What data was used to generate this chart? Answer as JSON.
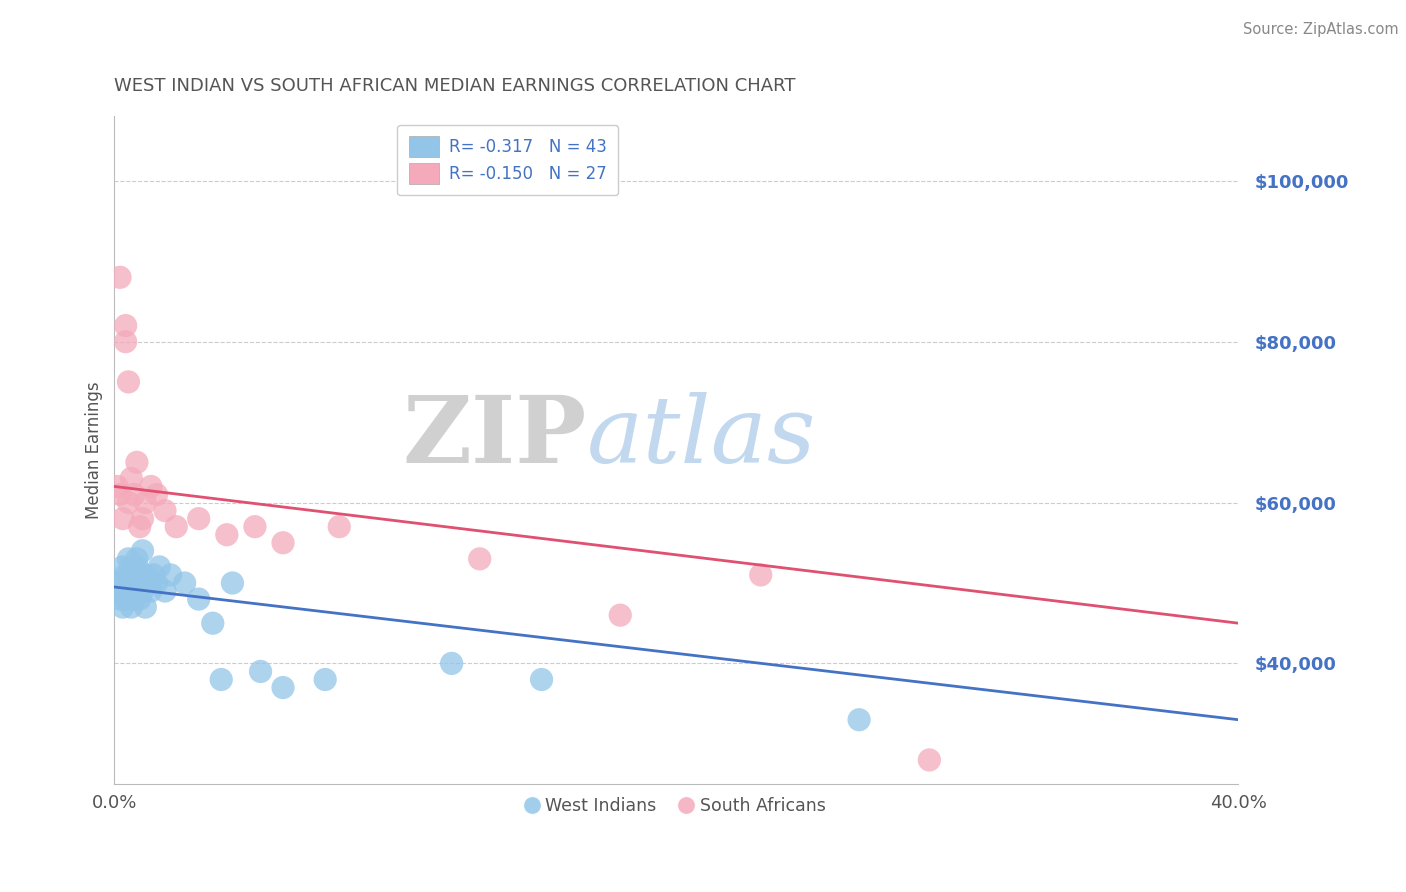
{
  "title": "WEST INDIAN VS SOUTH AFRICAN MEDIAN EARNINGS CORRELATION CHART",
  "source": "Source: ZipAtlas.com",
  "ylabel": "Median Earnings",
  "y_tick_labels": [
    "$40,000",
    "$60,000",
    "$80,000",
    "$100,000"
  ],
  "y_tick_values": [
    40000,
    60000,
    80000,
    100000
  ],
  "xlim": [
    0.0,
    0.4
  ],
  "ylim": [
    25000,
    108000
  ],
  "blue_color": "#92C5E8",
  "pink_color": "#F4AABB",
  "blue_line_color": "#4472C4",
  "pink_line_color": "#E05070",
  "title_color": "#555555",
  "axis_label_color": "#555555",
  "tick_color": "#4472C4",
  "source_color": "#888888",
  "grid_color": "#CCCCCC",
  "background_color": "#FFFFFF",
  "wi_x": [
    0.001,
    0.002,
    0.002,
    0.003,
    0.003,
    0.004,
    0.004,
    0.005,
    0.005,
    0.005,
    0.006,
    0.006,
    0.007,
    0.007,
    0.007,
    0.007,
    0.008,
    0.008,
    0.008,
    0.009,
    0.009,
    0.01,
    0.01,
    0.011,
    0.011,
    0.012,
    0.013,
    0.014,
    0.015,
    0.016,
    0.018,
    0.02,
    0.025,
    0.03,
    0.035,
    0.038,
    0.042,
    0.052,
    0.06,
    0.075,
    0.12,
    0.152,
    0.265
  ],
  "wi_y": [
    49000,
    48000,
    50000,
    47000,
    52000,
    51000,
    48000,
    50000,
    53000,
    49000,
    47000,
    52000,
    51000,
    48000,
    50000,
    49000,
    53000,
    50000,
    52000,
    48000,
    50000,
    54000,
    49000,
    51000,
    47000,
    50000,
    49000,
    51000,
    50000,
    52000,
    49000,
    51000,
    50000,
    48000,
    45000,
    38000,
    50000,
    39000,
    37000,
    38000,
    40000,
    38000,
    33000
  ],
  "sa_x": [
    0.001,
    0.002,
    0.002,
    0.003,
    0.004,
    0.004,
    0.005,
    0.005,
    0.006,
    0.007,
    0.008,
    0.009,
    0.01,
    0.011,
    0.013,
    0.015,
    0.018,
    0.022,
    0.03,
    0.04,
    0.05,
    0.06,
    0.08,
    0.13,
    0.18,
    0.23,
    0.29
  ],
  "sa_y": [
    62000,
    61000,
    88000,
    58000,
    82000,
    80000,
    60000,
    75000,
    63000,
    61000,
    65000,
    57000,
    58000,
    60000,
    62000,
    61000,
    59000,
    57000,
    58000,
    56000,
    57000,
    55000,
    57000,
    53000,
    46000,
    51000,
    28000
  ],
  "wi_line_x": [
    0.0,
    0.4
  ],
  "wi_line_y": [
    49500,
    33000
  ],
  "sa_line_x": [
    0.0,
    0.4
  ],
  "sa_line_y": [
    62000,
    45000
  ]
}
